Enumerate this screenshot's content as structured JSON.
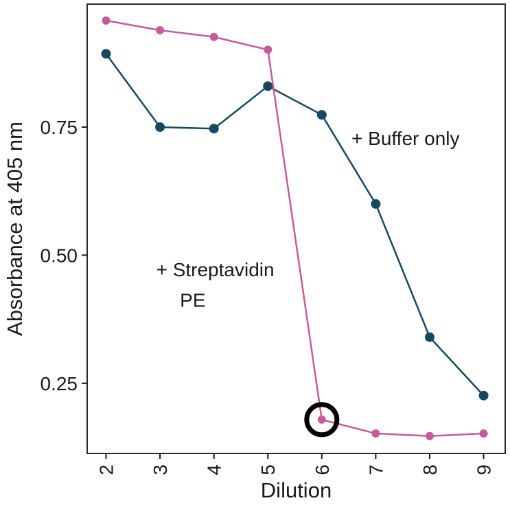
{
  "chart_data": {
    "type": "line",
    "title": "",
    "xlabel": "Dilution",
    "ylabel": "Absorbance at 405 nm",
    "x": [
      2,
      3,
      4,
      5,
      6,
      7,
      8,
      9
    ],
    "x_ticks": [
      "2",
      "3",
      "4",
      "5",
      "6",
      "7",
      "8",
      "9"
    ],
    "y_ticks": [
      "0.25",
      "0.50",
      "0.75"
    ],
    "y_tick_values": [
      0.25,
      0.5,
      0.75
    ],
    "xlim": [
      1.65,
      9.4
    ],
    "ylim": [
      0.113,
      0.99
    ],
    "grid": false,
    "legend_position": "none",
    "x_tick_label_rotation": -90,
    "series": [
      {
        "name": "+ Buffer only",
        "color": "#17485f",
        "values": [
          0.893,
          0.75,
          0.747,
          0.83,
          0.774,
          0.6,
          0.34,
          0.226
        ]
      },
      {
        "name": "+ Streptavidin PE",
        "color": "#c65b9b",
        "values": [
          0.958,
          0.939,
          0.926,
          0.901,
          0.179,
          0.152,
          0.147,
          0.152
        ]
      }
    ],
    "annotations": {
      "texts": [
        {
          "text": "+ Buffer only",
          "x": 6.55,
          "y": 0.715
        },
        {
          "text": "+ Streptavidin",
          "x": 2.93,
          "y": 0.459
        },
        {
          "text": "PE",
          "x": 3.37,
          "y": 0.399
        }
      ],
      "highlight_ring": {
        "series_index": 1,
        "point_index": 4,
        "color": "#000000",
        "radius": 22,
        "stroke_width": 7
      }
    },
    "panel_border_color": "#2b2b2b"
  }
}
